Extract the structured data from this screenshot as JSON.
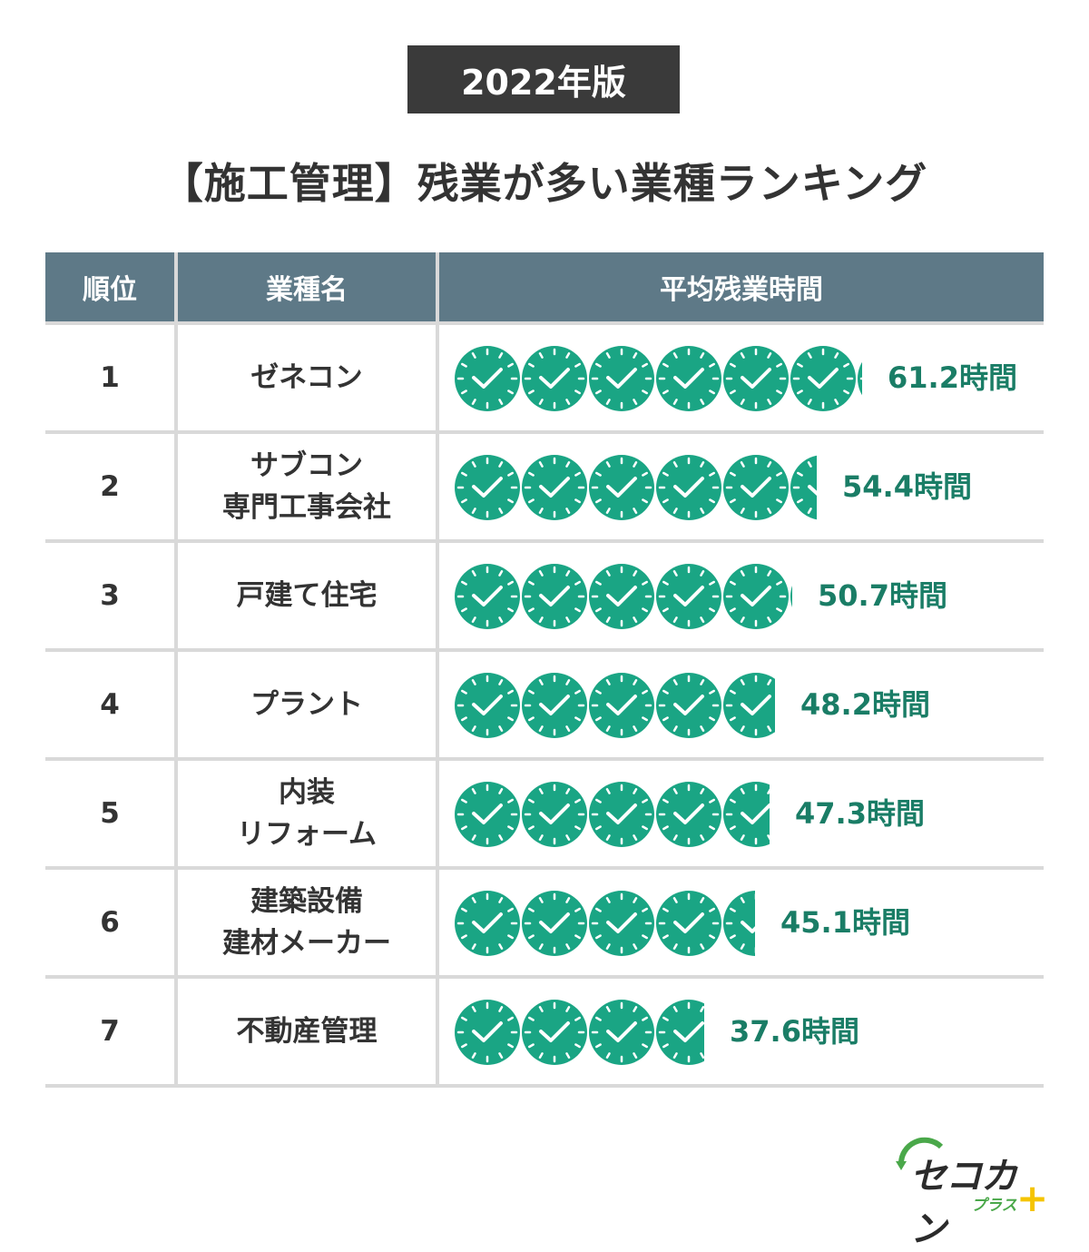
{
  "badge": "2022年版",
  "title": "【施工管理】残業が多い業種ランキング",
  "headers": {
    "rank": "順位",
    "industry": "業種名",
    "hours": "平均残業時間"
  },
  "colors": {
    "clock": "#1aa584",
    "header_bg": "#5e7987",
    "value_text": "#1a7d66"
  },
  "chart_data": {
    "type": "bar",
    "icon": "clock-icon",
    "unit": "時間",
    "categories": [
      "ゼネコン",
      "サブコン 専門工事会社",
      "戸建て住宅",
      "プラント",
      "内装 リフォーム",
      "建築設備 建材メーカー",
      "不動産管理"
    ],
    "values": [
      61.2,
      54.4,
      50.7,
      48.2,
      47.3,
      45.1,
      37.6
    ]
  },
  "rows": [
    {
      "rank": "1",
      "name_lines": [
        "ゼネコン"
      ],
      "value_label": "61.2時間"
    },
    {
      "rank": "2",
      "name_lines": [
        "サブコン",
        "専門工事会社"
      ],
      "value_label": "54.4時間"
    },
    {
      "rank": "3",
      "name_lines": [
        "戸建て住宅"
      ],
      "value_label": "50.7時間"
    },
    {
      "rank": "4",
      "name_lines": [
        "プラント"
      ],
      "value_label": "48.2時間"
    },
    {
      "rank": "5",
      "name_lines": [
        "内装",
        "リフォーム"
      ],
      "value_label": "47.3時間"
    },
    {
      "rank": "6",
      "name_lines": [
        "建築設備",
        "建材メーカー"
      ],
      "value_label": "45.1時間"
    },
    {
      "rank": "7",
      "name_lines": [
        "不動産管理"
      ],
      "value_label": "37.6時間"
    }
  ],
  "logo": {
    "main": "セコカン",
    "sub": "プラス",
    "plus": "+"
  }
}
